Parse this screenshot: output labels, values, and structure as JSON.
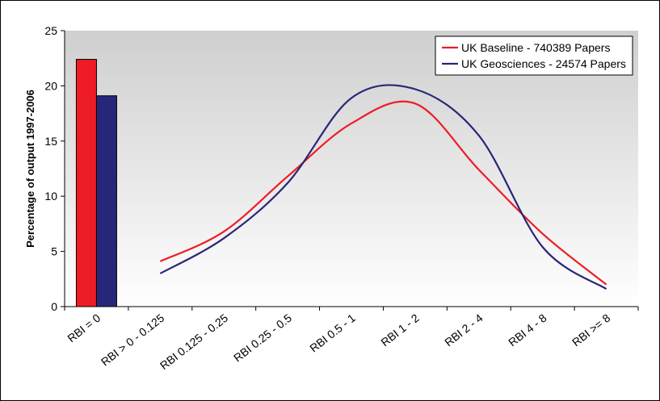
{
  "chart_data": {
    "type": "bar+line",
    "title": "",
    "xlabel": "",
    "ylabel": "Percentage of output 1997-2006",
    "ylim": [
      0,
      25
    ],
    "yticks": [
      "0",
      "5",
      "10",
      "15",
      "20",
      "25"
    ],
    "categories": [
      "RBI = 0",
      "RBI > 0 - 0.125",
      "RBI 0.125 - 0.25",
      "RBI 0.25 - 0.5",
      "RBI 0.5 - 1",
      "RBI 1 - 2",
      "RBI 2 - 4",
      "RBI 4 - 8",
      "RBI >= 8"
    ],
    "grid": false,
    "plot_background": "gradient grey-to-white (top to bottom)",
    "legend_position": "top-right",
    "series": [
      {
        "name": "UK Baseline - 740389 Papers",
        "color": "#ee1c25",
        "bar_category": "RBI = 0",
        "bar_value": 22.4,
        "line_categories": [
          "RBI > 0 - 0.125",
          "RBI 0.125 - 0.25",
          "RBI 0.25 - 0.5",
          "RBI 0.5 - 1",
          "RBI 1 - 2",
          "RBI 2 - 4",
          "RBI 4 - 8",
          "RBI >= 8"
        ],
        "line_values": [
          4.1,
          6.8,
          11.8,
          16.6,
          18.4,
          12.4,
          6.6,
          2.0
        ]
      },
      {
        "name": "UK Geosciences - 24574 Papers",
        "color": "#27277a",
        "bar_category": "RBI = 0",
        "bar_value": 19.1,
        "line_categories": [
          "RBI > 0 - 0.125",
          "RBI 0.125 - 0.25",
          "RBI 0.25 - 0.5",
          "RBI 0.5 - 1",
          "RBI 1 - 2",
          "RBI 2 - 4",
          "RBI 4 - 8",
          "RBI >= 8"
        ],
        "line_values": [
          3.0,
          6.2,
          11.2,
          18.9,
          19.7,
          15.5,
          5.4,
          1.6
        ]
      }
    ]
  }
}
